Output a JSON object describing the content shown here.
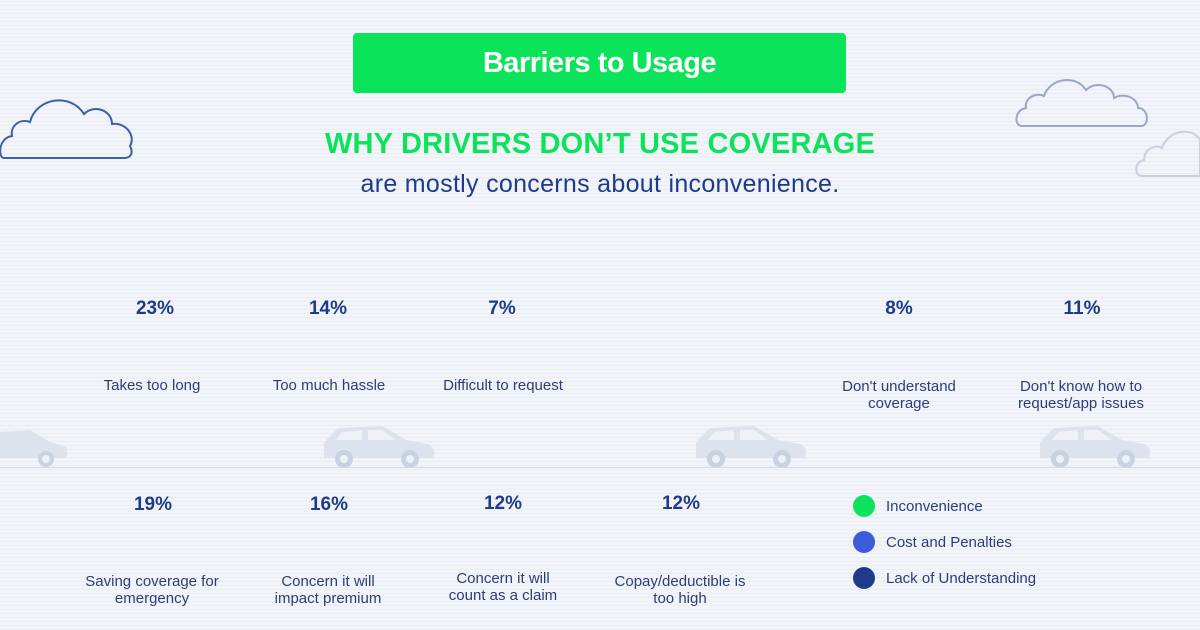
{
  "banner": {
    "title": "Barriers to Usage"
  },
  "headline": "WHY DRIVERS DON’T USE COVERAGE",
  "subhead": "are mostly concerns about inconvenience.",
  "colors": {
    "inconvenience": "#0be35a",
    "cost": "#3b5bdb",
    "understanding": "#1e3a8a"
  },
  "chart_data": {
    "type": "table",
    "title": "Barriers to Usage",
    "rows": [
      {
        "value": 23,
        "value_label": "23%",
        "label": "Takes too long",
        "category": "Inconvenience"
      },
      {
        "value": 14,
        "value_label": "14%",
        "label": "Too much hassle",
        "category": "Inconvenience"
      },
      {
        "value": 7,
        "value_label": "7%",
        "label": "Difficult to request",
        "category": "Inconvenience"
      },
      {
        "value": 8,
        "value_label": "8%",
        "label": "Don't understand coverage",
        "category": "Lack of Understanding"
      },
      {
        "value": 11,
        "value_label": "11%",
        "label": "Don't know how to request/app issues",
        "category": "Lack of Understanding"
      },
      {
        "value": 19,
        "value_label": "19%",
        "label": "Saving coverage for emergency",
        "category": "Cost and Penalties"
      },
      {
        "value": 16,
        "value_label": "16%",
        "label": "Concern it will impact premium",
        "category": "Cost and Penalties"
      },
      {
        "value": 12,
        "value_label": "12%",
        "label": "Concern it will count as a claim",
        "category": "Cost and Penalties"
      },
      {
        "value": 12,
        "value_label": "12%",
        "label": "Copay/deductible is too high",
        "category": "Cost and Penalties"
      }
    ],
    "legend": [
      {
        "name": "Inconvenience",
        "color": "#0be35a"
      },
      {
        "name": "Cost and Penalties",
        "color": "#3b5bdb"
      },
      {
        "name": "Lack of Understanding",
        "color": "#1e3a8a"
      }
    ]
  }
}
